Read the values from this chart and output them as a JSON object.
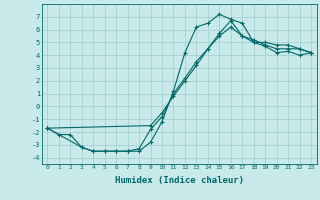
{
  "xlabel": "Humidex (Indice chaleur)",
  "background_color": "#c8eaea",
  "grid_color": "#a8d0d0",
  "line_color": "#006868",
  "xlim": [
    -0.5,
    23.5
  ],
  "ylim": [
    -4.5,
    8.0
  ],
  "xticks": [
    0,
    1,
    2,
    3,
    4,
    5,
    6,
    7,
    8,
    9,
    10,
    11,
    12,
    13,
    14,
    15,
    16,
    17,
    18,
    19,
    20,
    21,
    22,
    23
  ],
  "yticks": [
    -4,
    -3,
    -2,
    -1,
    0,
    1,
    2,
    3,
    4,
    5,
    6,
    7
  ],
  "line1_x": [
    0,
    1,
    2,
    3,
    4,
    5,
    6,
    7,
    8,
    9,
    10,
    11,
    12,
    13,
    14,
    15,
    16,
    17,
    18,
    19,
    20,
    21,
    22,
    23
  ],
  "line1_y": [
    -1.7,
    -2.2,
    -2.2,
    -3.2,
    -3.5,
    -3.5,
    -3.5,
    -3.5,
    -3.5,
    -2.8,
    -1.2,
    1.2,
    4.2,
    6.2,
    6.5,
    7.2,
    6.8,
    6.5,
    5.0,
    5.0,
    4.8,
    4.8,
    4.5,
    4.2
  ],
  "line2_x": [
    0,
    3,
    4,
    5,
    6,
    7,
    8,
    9,
    10,
    11,
    12,
    13,
    14,
    15,
    16,
    17,
    18,
    19,
    20,
    21,
    22,
    23
  ],
  "line2_y": [
    -1.7,
    -3.2,
    -3.5,
    -3.5,
    -3.5,
    -3.5,
    -3.3,
    -1.8,
    -0.8,
    1.0,
    2.2,
    3.5,
    4.5,
    5.5,
    6.2,
    5.5,
    5.2,
    4.8,
    4.5,
    4.5,
    4.5,
    4.2
  ],
  "line3_x": [
    0,
    9,
    10,
    11,
    12,
    13,
    14,
    15,
    16,
    17,
    18,
    19,
    20,
    21,
    22,
    23
  ],
  "line3_y": [
    -1.7,
    -1.5,
    -0.5,
    0.8,
    2.0,
    3.2,
    4.5,
    5.7,
    6.7,
    5.5,
    5.0,
    4.7,
    4.2,
    4.3,
    4.0,
    4.2
  ]
}
